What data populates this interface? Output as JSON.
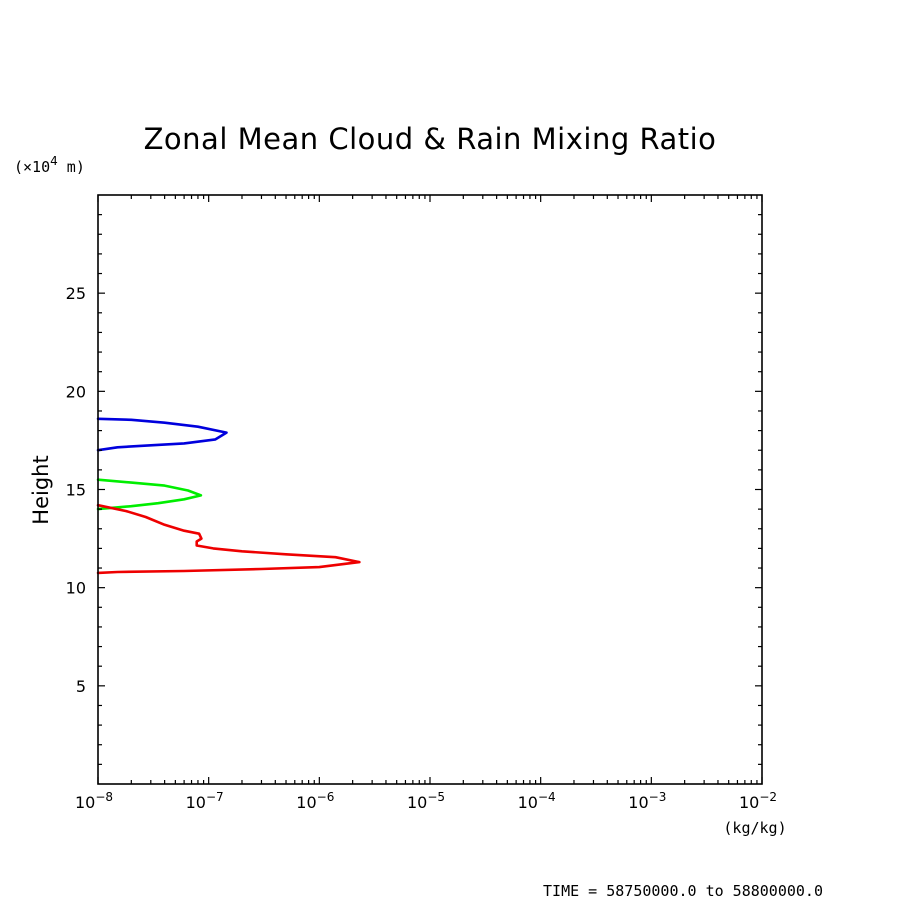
{
  "chart_data": {
    "type": "line",
    "title": "Zonal Mean Cloud & Rain Mixing Ratio",
    "ylabel": "Height",
    "y_unit_label": "(×10",
    "y_unit_exp": "4",
    "y_unit_tail": " m)",
    "xlabel": "(kg/kg)",
    "x_scale": "log",
    "xlim": [
      1e-08,
      0.01
    ],
    "ylim": [
      0,
      30
    ],
    "x_tick_base": "10",
    "x_ticks": [
      {
        "exp": "−8",
        "value": 1e-08
      },
      {
        "exp": "−7",
        "value": 1e-07
      },
      {
        "exp": "−6",
        "value": 1e-06
      },
      {
        "exp": "−5",
        "value": 1e-05
      },
      {
        "exp": "−4",
        "value": 0.0001
      },
      {
        "exp": "−3",
        "value": 0.001
      },
      {
        "exp": "−2",
        "value": 0.01
      }
    ],
    "y_ticks": [
      {
        "label": "5",
        "value": 5
      },
      {
        "label": "10",
        "value": 10
      },
      {
        "label": "15",
        "value": 15
      },
      {
        "label": "20",
        "value": 20
      },
      {
        "label": "25",
        "value": 25
      }
    ],
    "grid": false,
    "series": [
      {
        "color": "#0000dd",
        "points": [
          [
            1e-08,
            18.6
          ],
          [
            2e-08,
            18.55
          ],
          [
            4e-08,
            18.4
          ],
          [
            8e-08,
            18.2
          ],
          [
            1.45e-07,
            17.9
          ],
          [
            1.15e-07,
            17.55
          ],
          [
            6e-08,
            17.35
          ],
          [
            3e-08,
            17.25
          ],
          [
            1.5e-08,
            17.15
          ],
          [
            1e-08,
            17.0
          ]
        ]
      },
      {
        "color": "#00ee00",
        "points": [
          [
            1e-08,
            15.5
          ],
          [
            2e-08,
            15.35
          ],
          [
            4e-08,
            15.2
          ],
          [
            6.5e-08,
            14.95
          ],
          [
            8.5e-08,
            14.7
          ],
          [
            6e-08,
            14.5
          ],
          [
            3.5e-08,
            14.3
          ],
          [
            2e-08,
            14.15
          ],
          [
            1e-08,
            14.0
          ]
        ]
      },
      {
        "color": "#ee0000",
        "points": [
          [
            1e-08,
            14.2
          ],
          [
            1.8e-08,
            13.9
          ],
          [
            2.7e-08,
            13.6
          ],
          [
            4e-08,
            13.2
          ],
          [
            6e-08,
            12.9
          ],
          [
            8.2e-08,
            12.75
          ],
          [
            8.6e-08,
            12.5
          ],
          [
            7.8e-08,
            12.35
          ],
          [
            7.8e-08,
            12.15
          ],
          [
            1.1e-07,
            12.0
          ],
          [
            2e-07,
            11.85
          ],
          [
            5e-07,
            11.7
          ],
          [
            1.4e-06,
            11.55
          ],
          [
            2.3e-06,
            11.3
          ],
          [
            1e-06,
            11.05
          ],
          [
            3e-07,
            10.95
          ],
          [
            6e-08,
            10.85
          ],
          [
            1.5e-08,
            10.8
          ],
          [
            1e-08,
            10.75
          ]
        ]
      }
    ]
  },
  "footer": {
    "time_text": "TIME = 58750000.0 to 58800000.0"
  }
}
